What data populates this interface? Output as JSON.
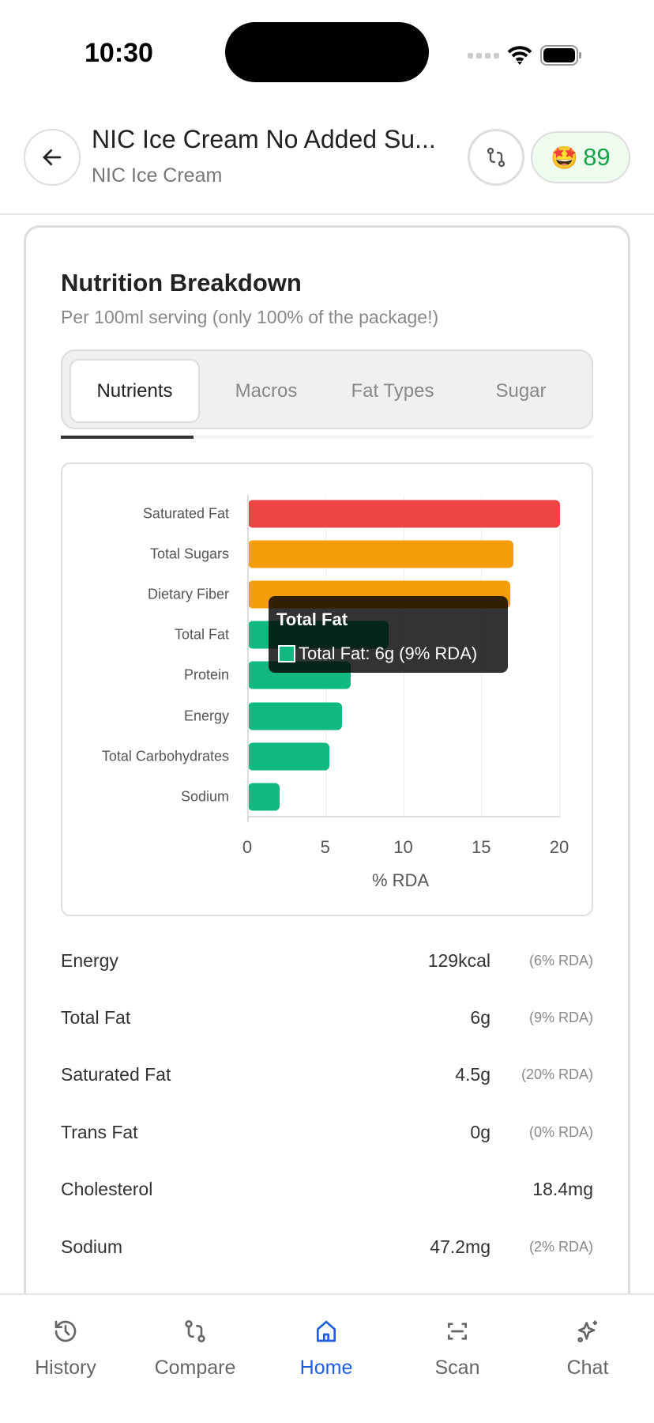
{
  "status": {
    "time": "10:30"
  },
  "header": {
    "title": "NIC Ice Cream No Added Su...",
    "subtitle": "NIC Ice Cream",
    "score": "89",
    "score_emoji": "🤩"
  },
  "card": {
    "title": "Nutrition Breakdown",
    "subtitle": "Per 100ml serving (only 100% of the package!)",
    "tabs": [
      {
        "label": "Nutrients",
        "active": true
      },
      {
        "label": "Macros"
      },
      {
        "label": "Fat Types"
      },
      {
        "label": "Sugar"
      }
    ]
  },
  "chart_data": {
    "type": "bar",
    "orientation": "horizontal",
    "categories": [
      "Saturated Fat",
      "Total Sugars",
      "Dietary Fiber",
      "Total Fat",
      "Protein",
      "Energy",
      "Total Carbohydrates",
      "Sodium"
    ],
    "values": [
      20,
      17,
      16.8,
      9,
      6.6,
      6,
      5.2,
      2
    ],
    "colors": [
      "#ef4444",
      "#f59e0b",
      "#f59e0b",
      "#10b981",
      "#10b981",
      "#10b981",
      "#10b981",
      "#10b981"
    ],
    "xlabel": "% RDA",
    "xlim": [
      0,
      20
    ],
    "xticks": [
      "0",
      "5",
      "10",
      "15",
      "20"
    ],
    "grid": true,
    "tooltip": {
      "title": "Total Fat",
      "text": "Total Fat: 6g (9% RDA)"
    }
  },
  "nutrients": [
    {
      "name": "Energy",
      "value": "129kcal",
      "rda": "(6% RDA)"
    },
    {
      "name": "Total Fat",
      "value": "6g",
      "rda": "(9% RDA)"
    },
    {
      "name": "Saturated Fat",
      "value": "4.5g",
      "rda": "(20% RDA)"
    },
    {
      "name": "Trans Fat",
      "value": "0g",
      "rda": "(0% RDA)"
    },
    {
      "name": "Cholesterol",
      "value": "18.4mg",
      "rda": ""
    },
    {
      "name": "Sodium",
      "value": "47.2mg",
      "rda": "(2% RDA)"
    }
  ],
  "nav": [
    {
      "label": "History",
      "icon": "history-icon"
    },
    {
      "label": "Compare",
      "icon": "compare-icon"
    },
    {
      "label": "Home",
      "icon": "home-icon",
      "active": true
    },
    {
      "label": "Scan",
      "icon": "scan-icon"
    },
    {
      "label": "Chat",
      "icon": "sparkle-icon"
    }
  ],
  "accent": "#1d5fe0"
}
